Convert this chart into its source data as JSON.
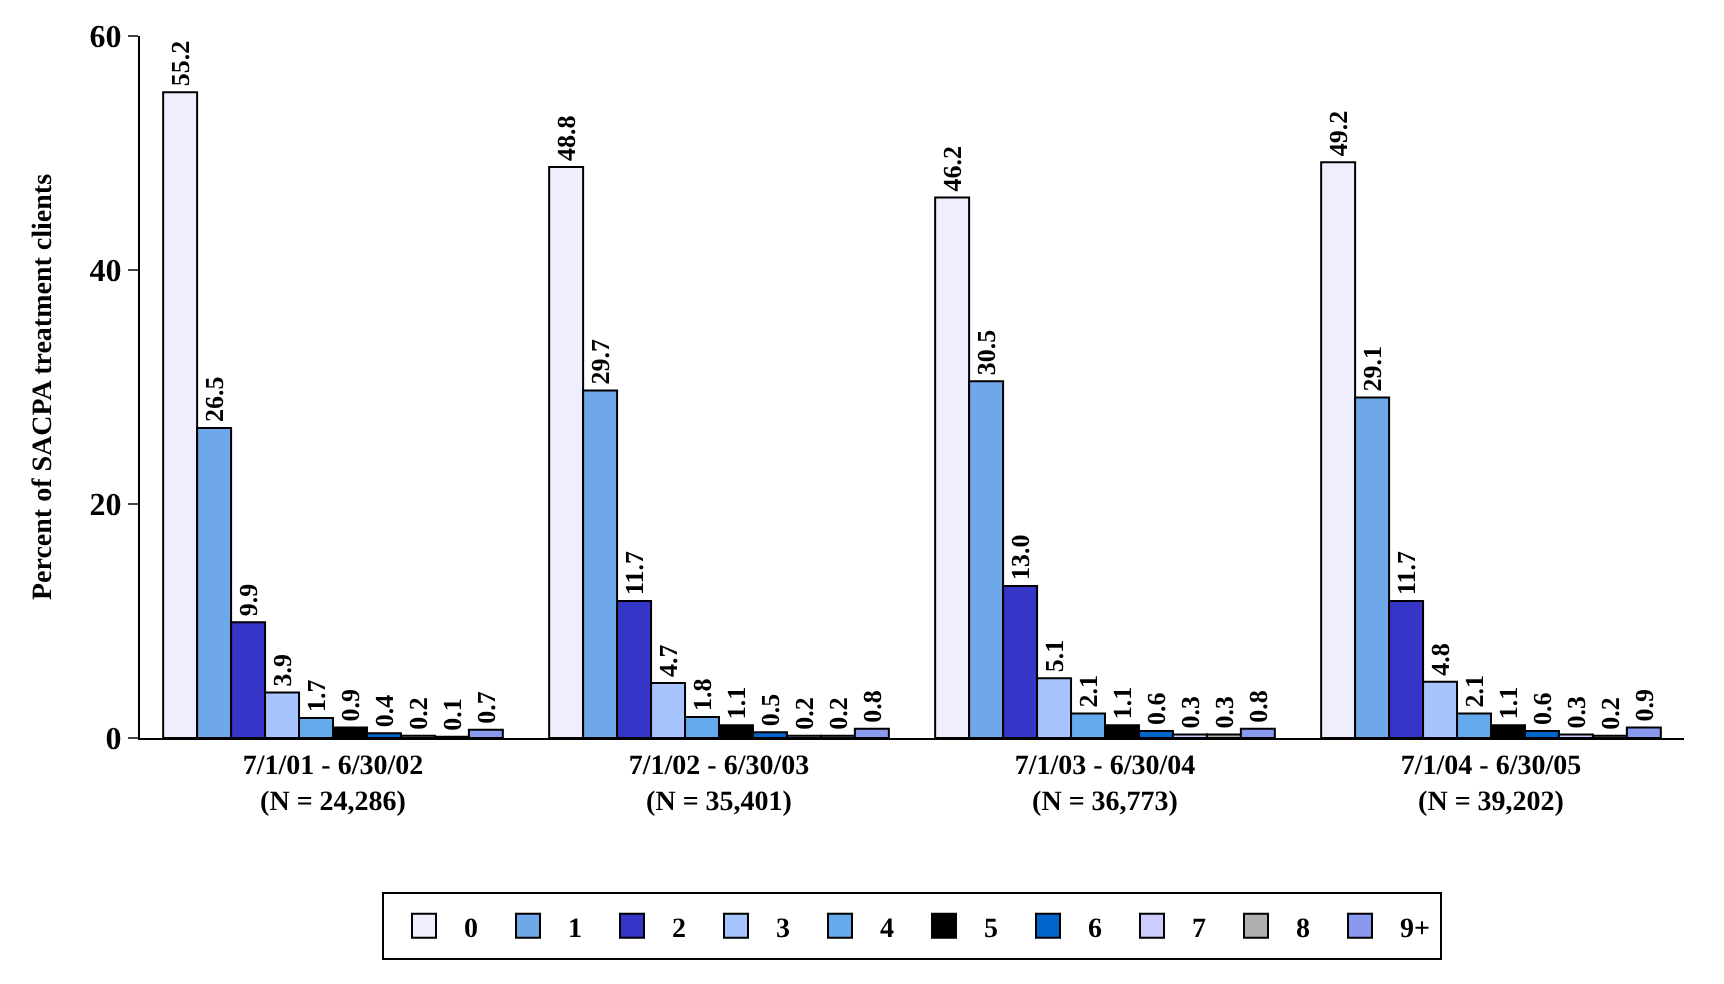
{
  "chart_data": {
    "type": "bar",
    "ylabel": "Percent of SACPA treatment clients",
    "categories": [
      "7/1/01 - 6/30/02\n(N = 24,286)",
      "7/1/02 - 6/30/03\n(N = 35,401)",
      "7/1/03 - 6/30/04\n(N = 36,773)",
      "7/1/04 - 6/30/05\n(N = 39,202)"
    ],
    "series": [
      {
        "name": "0",
        "color": "#eeeeff",
        "values": [
          55.2,
          48.8,
          46.2,
          49.2
        ],
        "value_labels": [
          "55.2",
          "48.8",
          "46.2",
          "49.2"
        ]
      },
      {
        "name": "1",
        "color": "#6fa8e8",
        "values": [
          26.5,
          29.7,
          30.5,
          29.1
        ],
        "value_labels": [
          "26.5",
          "29.7",
          "30.5",
          "29.1"
        ]
      },
      {
        "name": "2",
        "color": "#3535c8",
        "values": [
          9.9,
          11.7,
          13.0,
          11.7
        ],
        "value_labels": [
          "9.9",
          "11.7",
          "13.0",
          "11.7"
        ]
      },
      {
        "name": "3",
        "color": "#a8c4ff",
        "values": [
          3.9,
          4.7,
          5.1,
          4.8
        ],
        "value_labels": [
          "3.9",
          "4.7",
          "5.1",
          "4.8"
        ]
      },
      {
        "name": "4",
        "color": "#66aaee",
        "values": [
          1.7,
          1.8,
          2.1,
          2.1
        ],
        "value_labels": [
          "1.7",
          "1.8",
          "2.1",
          "2.1"
        ]
      },
      {
        "name": "5",
        "color": "#000000",
        "values": [
          0.9,
          1.1,
          1.1,
          1.1
        ],
        "value_labels": [
          "0.9",
          "1.1",
          "1.1",
          "1.1"
        ]
      },
      {
        "name": "6",
        "color": "#0066cc",
        "values": [
          0.4,
          0.5,
          0.6,
          0.6
        ],
        "value_labels": [
          "0.4",
          "0.5",
          "0.6",
          "0.6"
        ]
      },
      {
        "name": "7",
        "color": "#ccccff",
        "values": [
          0.2,
          0.2,
          0.3,
          0.3
        ],
        "value_labels": [
          "0.2",
          "0.2",
          "0.3",
          "0.3"
        ]
      },
      {
        "name": "8",
        "color": "#b0b0b0",
        "values": [
          0.1,
          0.2,
          0.3,
          0.2
        ],
        "value_labels": [
          "0.1",
          "0.2",
          "0.3",
          "0.2"
        ]
      },
      {
        "name": "9+",
        "color": "#8899ee",
        "values": [
          0.7,
          0.8,
          0.8,
          0.9
        ],
        "value_labels": [
          "0.7",
          "0.8",
          "0.8",
          "0.9"
        ]
      }
    ],
    "ylim": [
      0,
      60
    ],
    "yticks": [
      0,
      20,
      40,
      60
    ],
    "legend": "bottom"
  }
}
